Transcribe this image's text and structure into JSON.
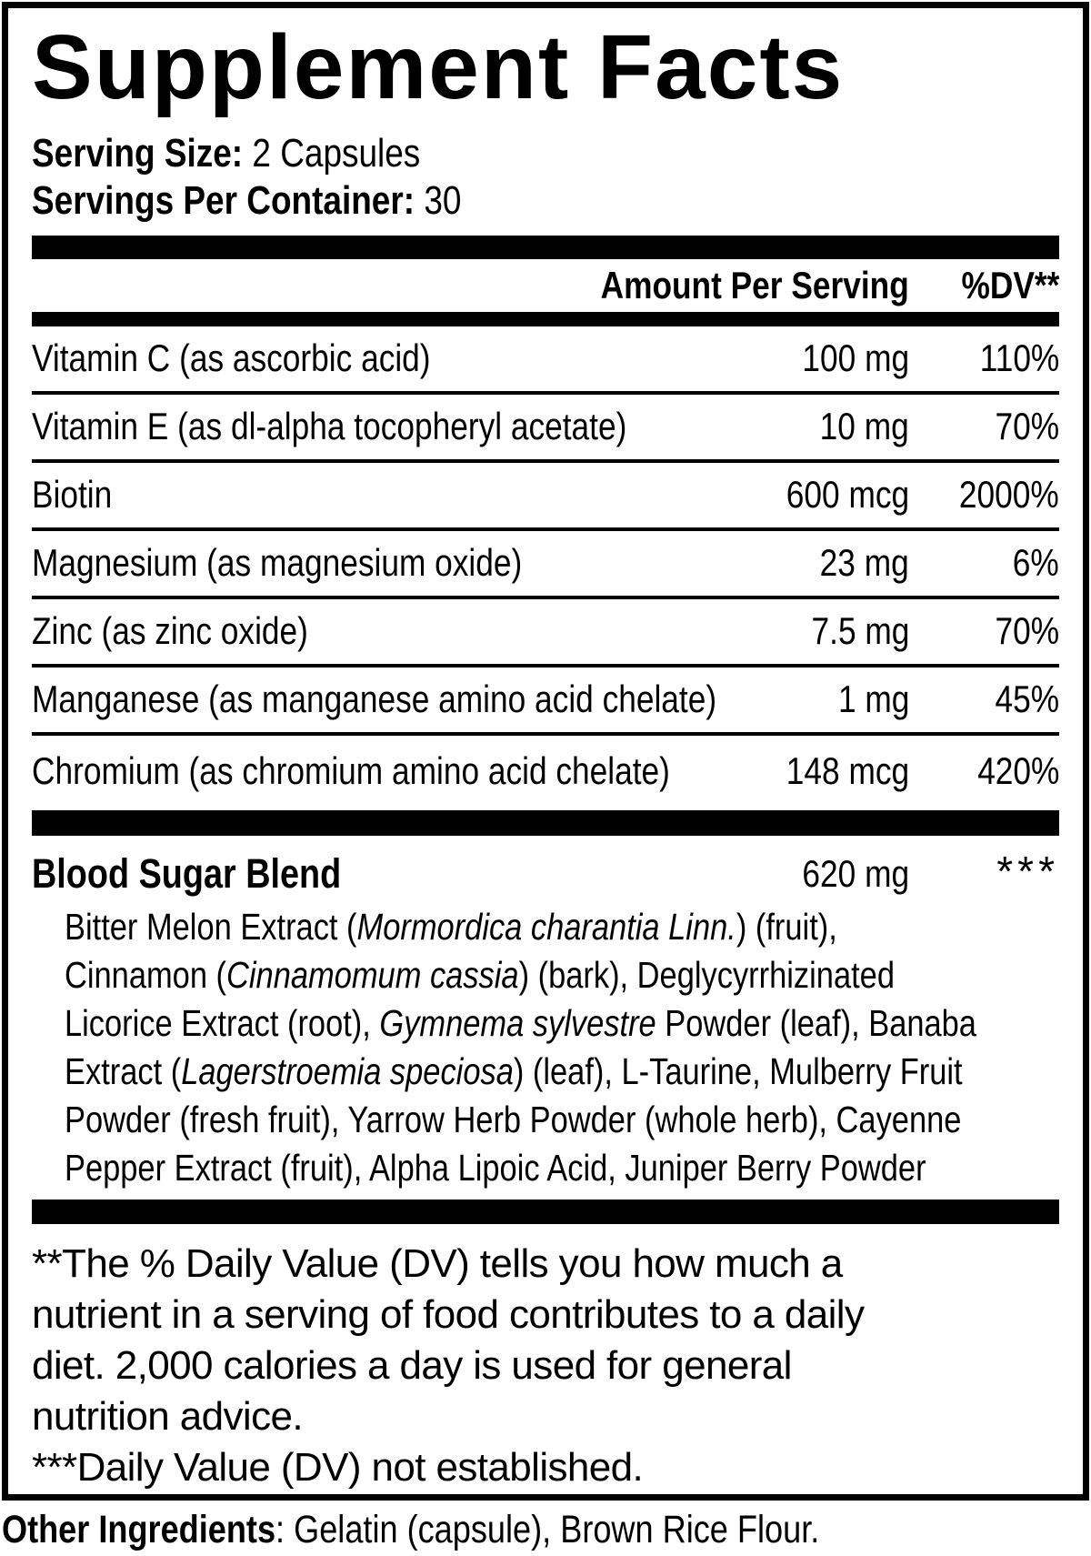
{
  "colors": {
    "ink": "#000000",
    "background": "#ffffff"
  },
  "title": "Supplement Facts",
  "serving": {
    "size_label": "Serving Size:",
    "size_value": " 2 Capsules",
    "container_label": "Servings Per Container:",
    "container_value": " 30"
  },
  "table": {
    "header": {
      "amount": "Amount Per Serving",
      "dv": "%DV**"
    },
    "rows": [
      {
        "name": "Vitamin C (as ascorbic acid)",
        "amount": "100 mg",
        "dv": "110%"
      },
      {
        "name": "Vitamin E (as dl-alpha tocopheryl acetate)",
        "amount": "10 mg",
        "dv": "70%"
      },
      {
        "name": "Biotin",
        "amount": "600 mcg",
        "dv": "2000%"
      },
      {
        "name": "Magnesium (as magnesium oxide)",
        "amount": "23 mg",
        "dv": "6%"
      },
      {
        "name": "Zinc (as zinc oxide)",
        "amount": "7.5 mg",
        "dv": "70%"
      },
      {
        "name": "Manganese (as manganese amino acid chelate)",
        "amount": "1 mg",
        "dv": "45%"
      },
      {
        "name": "Chromium (as chromium amino acid chelate)",
        "amount": "148 mcg",
        "dv": "420%"
      }
    ]
  },
  "blend": {
    "name": "Blood Sugar Blend",
    "amount": "620 mg",
    "dv": "***",
    "ingredient_lines": [
      [
        {
          "t": "Bitter Melon Extract ("
        },
        {
          "t": "Mormordica charantia Linn.",
          "i": true
        },
        {
          "t": ") (fruit),"
        }
      ],
      [
        {
          "t": "Cinnamon ("
        },
        {
          "t": "Cinnamomum cassia",
          "i": true
        },
        {
          "t": ") (bark), Deglycyrrhizinated"
        }
      ],
      [
        {
          "t": "Licorice Extract (root), "
        },
        {
          "t": "Gymnema sylvestre",
          "i": true
        },
        {
          "t": " Powder (leaf), Banaba"
        }
      ],
      [
        {
          "t": "Extract ("
        },
        {
          "t": "Lagerstroemia speciosa",
          "i": true
        },
        {
          "t": ") (leaf), L-Taurine, Mulberry Fruit"
        }
      ],
      [
        {
          "t": "Powder (fresh fruit), Yarrow Herb Powder (whole herb), Cayenne"
        }
      ],
      [
        {
          "t": "Pepper Extract (fruit), Alpha Lipoic Acid, Juniper Berry Powder"
        }
      ]
    ]
  },
  "footnotes": {
    "dv_lines": [
      "**The % Daily Value (DV) tells you how much a",
      "nutrient in a serving of food contributes to a daily",
      "diet. 2,000 calories a day is used for general",
      "nutrition advice."
    ],
    "not_established": "***Daily Value (DV) not established."
  },
  "other_ingredients": {
    "label": "Other Ingredients",
    "value": ": Gelatin (capsule), Brown Rice Flour."
  }
}
